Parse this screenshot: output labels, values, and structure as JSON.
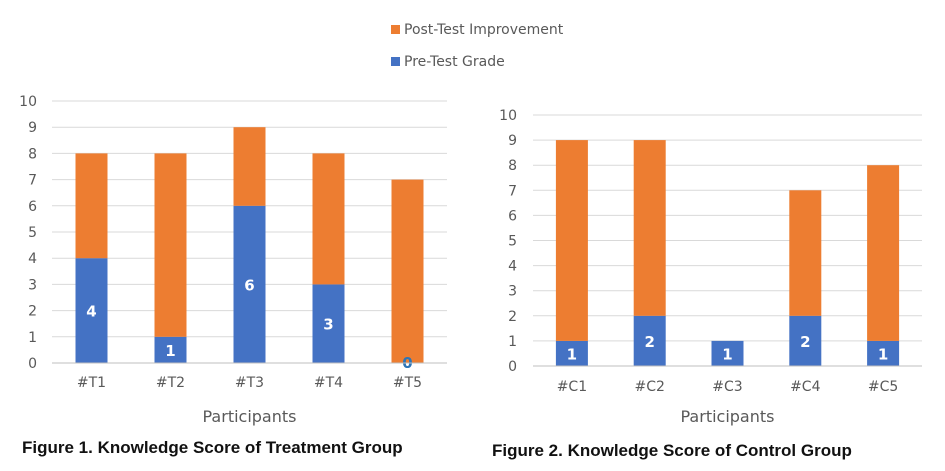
{
  "legend": [
    {
      "name": "Post-Test Improvement",
      "color": "#ED7D31"
    },
    {
      "name": "Pre-Test Grade",
      "color": "#4472C4"
    }
  ],
  "chart_data": [
    {
      "type": "bar",
      "stacked": true,
      "caption": "Figure 1. Knowledge Score of Treatment Group",
      "xlabel": "Participants",
      "ylabel": "",
      "ylim": [
        0,
        10
      ],
      "yticks": [
        0,
        1,
        2,
        3,
        4,
        5,
        6,
        7,
        8,
        9,
        10
      ],
      "grid": true,
      "categories": [
        "#T1",
        "#T2",
        "#T3",
        "#T4",
        "#T5"
      ],
      "series": [
        {
          "name": "Pre-Test Grade",
          "color": "#4472C4",
          "values": [
            4,
            1,
            6,
            3,
            0
          ],
          "data_labels": [
            "4",
            "1",
            "6",
            "3",
            "0"
          ]
        },
        {
          "name": "Post-Test Improvement",
          "color": "#ED7D31",
          "values": [
            4,
            7,
            3,
            5,
            7
          ]
        }
      ]
    },
    {
      "type": "bar",
      "stacked": true,
      "caption": "Figure 2. Knowledge Score of Control Group",
      "xlabel": "Participants",
      "ylabel": "",
      "ylim": [
        0,
        10
      ],
      "yticks": [
        0,
        1,
        2,
        3,
        4,
        5,
        6,
        7,
        8,
        9,
        10
      ],
      "grid": true,
      "categories": [
        "#C1",
        "#C2",
        "#C3",
        "#C4",
        "#C5"
      ],
      "series": [
        {
          "name": "Pre-Test Grade",
          "color": "#4472C4",
          "values": [
            1,
            2,
            1,
            2,
            1
          ],
          "data_labels": [
            "1",
            "2",
            "1",
            "2",
            "1"
          ]
        },
        {
          "name": "Post-Test Improvement",
          "color": "#ED7D31",
          "values": [
            8,
            7,
            0,
            5,
            7
          ]
        }
      ]
    }
  ]
}
